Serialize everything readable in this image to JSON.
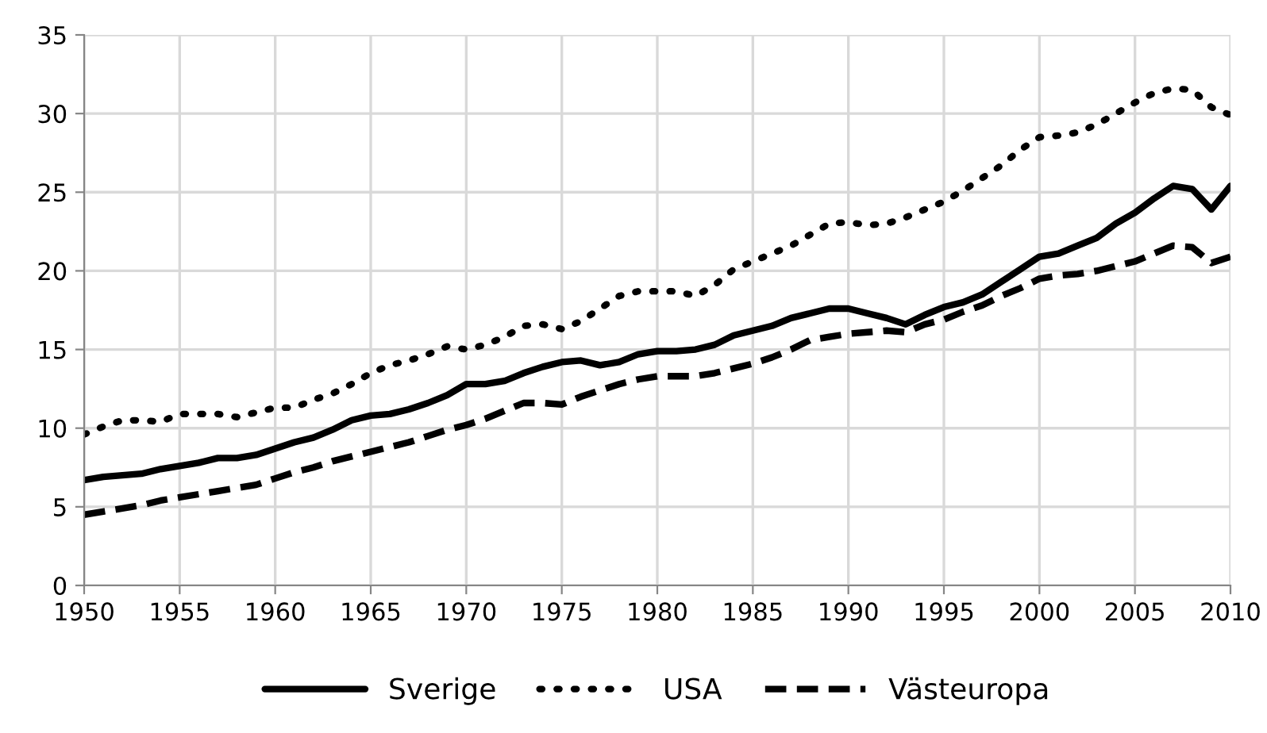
{
  "chart_data": {
    "type": "line",
    "xlim": [
      1950,
      2010
    ],
    "xticks": [
      1950,
      1955,
      1960,
      1965,
      1970,
      1975,
      1980,
      1985,
      1990,
      1995,
      2000,
      2005,
      2010
    ],
    "ylim": [
      0,
      35
    ],
    "yticks": [
      0,
      5,
      10,
      15,
      20,
      25,
      30,
      35
    ],
    "grid": true,
    "legend": "bottom",
    "x": [
      1950,
      1951,
      1952,
      1953,
      1954,
      1955,
      1956,
      1957,
      1958,
      1959,
      1960,
      1961,
      1962,
      1963,
      1964,
      1965,
      1966,
      1967,
      1968,
      1969,
      1970,
      1971,
      1972,
      1973,
      1974,
      1975,
      1976,
      1977,
      1978,
      1979,
      1980,
      1981,
      1982,
      1983,
      1984,
      1985,
      1986,
      1987,
      1988,
      1989,
      1990,
      1991,
      1992,
      1993,
      1994,
      1995,
      1996,
      1997,
      1998,
      1999,
      2000,
      2001,
      2002,
      2003,
      2004,
      2005,
      2006,
      2007,
      2008,
      2009,
      2010
    ],
    "series": [
      {
        "name": "Sverige",
        "color": "#000000",
        "line_style": "solid",
        "values": [
          6.7,
          6.9,
          7.0,
          7.1,
          7.4,
          7.6,
          7.8,
          8.1,
          8.1,
          8.3,
          8.7,
          9.1,
          9.4,
          9.9,
          10.5,
          10.8,
          10.9,
          11.2,
          11.6,
          12.1,
          12.8,
          12.8,
          13.0,
          13.5,
          13.9,
          14.2,
          14.3,
          14.0,
          14.2,
          14.7,
          14.9,
          14.9,
          15.0,
          15.3,
          15.9,
          16.2,
          16.5,
          17.0,
          17.3,
          17.6,
          17.6,
          17.3,
          17.0,
          16.6,
          17.2,
          17.7,
          18.0,
          18.5,
          19.3,
          20.1,
          20.9,
          21.1,
          21.6,
          22.1,
          23.0,
          23.7,
          24.6,
          25.4,
          25.2,
          23.9,
          25.4
        ]
      },
      {
        "name": "USA",
        "color": "#000000",
        "line_style": "dotted",
        "values": [
          9.6,
          10.1,
          10.5,
          10.5,
          10.4,
          10.9,
          10.9,
          10.9,
          10.7,
          11.0,
          11.3,
          11.3,
          11.8,
          12.2,
          12.8,
          13.5,
          14.0,
          14.3,
          14.7,
          15.2,
          15.0,
          15.3,
          15.8,
          16.5,
          16.6,
          16.3,
          16.8,
          17.6,
          18.4,
          18.7,
          18.7,
          18.7,
          18.4,
          19.1,
          20.1,
          20.6,
          21.1,
          21.6,
          22.3,
          23.0,
          23.1,
          22.9,
          23.0,
          23.4,
          23.9,
          24.4,
          25.1,
          25.9,
          26.7,
          27.7,
          28.5,
          28.6,
          28.8,
          29.3,
          30.0,
          30.7,
          31.3,
          31.6,
          31.5,
          30.4,
          29.9
        ]
      },
      {
        "name": "Västeuropa",
        "color": "#000000",
        "line_style": "dashed",
        "values": [
          4.5,
          4.7,
          4.9,
          5.1,
          5.4,
          5.6,
          5.8,
          6.0,
          6.2,
          6.4,
          6.8,
          7.2,
          7.5,
          7.9,
          8.2,
          8.5,
          8.8,
          9.1,
          9.5,
          9.9,
          10.2,
          10.6,
          11.1,
          11.6,
          11.6,
          11.5,
          12.0,
          12.4,
          12.8,
          13.1,
          13.3,
          13.3,
          13.3,
          13.5,
          13.8,
          14.1,
          14.5,
          15.0,
          15.6,
          15.8,
          16.0,
          16.1,
          16.2,
          16.1,
          16.6,
          16.9,
          17.4,
          17.8,
          18.4,
          18.9,
          19.5,
          19.7,
          19.8,
          20.0,
          20.3,
          20.6,
          21.1,
          21.6,
          21.5,
          20.5,
          20.9
        ]
      }
    ]
  }
}
